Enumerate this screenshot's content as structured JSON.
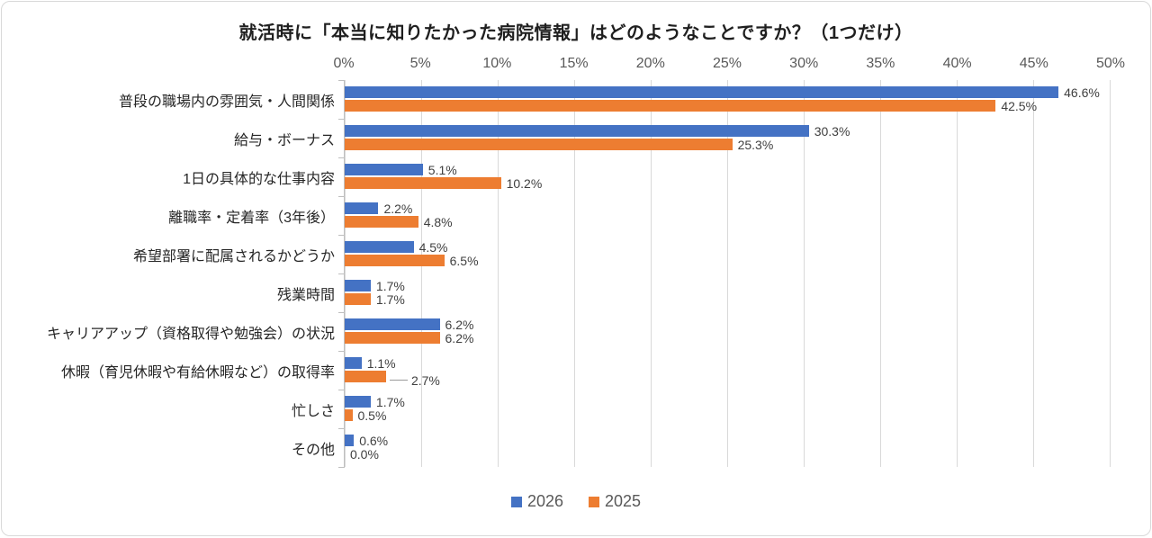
{
  "chart_data": {
    "type": "bar",
    "orientation": "horizontal",
    "title": "就活時に「本当に知りたかった病院情報」はどのようなことですか？（1つだけ）",
    "categories": [
      "普段の職場内の雰囲気・人間関係",
      "給与・ボーナス",
      "1日の具体的な仕事内容",
      "離職率・定着率（3年後）",
      "希望部署に配属されるかどうか",
      "残業時間",
      "キャリアアップ（資格取得や勉強会）の状況",
      "休暇（育児休暇や有給休暇など）の取得率",
      "忙しさ",
      "その他"
    ],
    "series": [
      {
        "name": "2026",
        "color": "#4472C4",
        "values": [
          46.6,
          30.3,
          5.1,
          2.2,
          4.5,
          1.7,
          6.2,
          1.1,
          1.7,
          0.6
        ]
      },
      {
        "name": "2025",
        "color": "#ED7D31",
        "values": [
          42.5,
          25.3,
          10.2,
          4.8,
          6.5,
          1.7,
          6.2,
          2.7,
          0.5,
          0.0
        ]
      }
    ],
    "value_label_suffix": "%",
    "xlim": [
      0,
      50
    ],
    "x_ticks": [
      "0%",
      "5%",
      "10%",
      "15%",
      "20%",
      "25%",
      "30%",
      "35%",
      "40%",
      "45%",
      "50%"
    ],
    "grid": true,
    "gridline_color": "#D9D9D9",
    "axis_line_color": "#BFBFBF",
    "legend_position": "bottom",
    "legend": [
      "2026",
      "2025"
    ],
    "callouts": [
      {
        "series": 1,
        "category": 7
      }
    ]
  }
}
